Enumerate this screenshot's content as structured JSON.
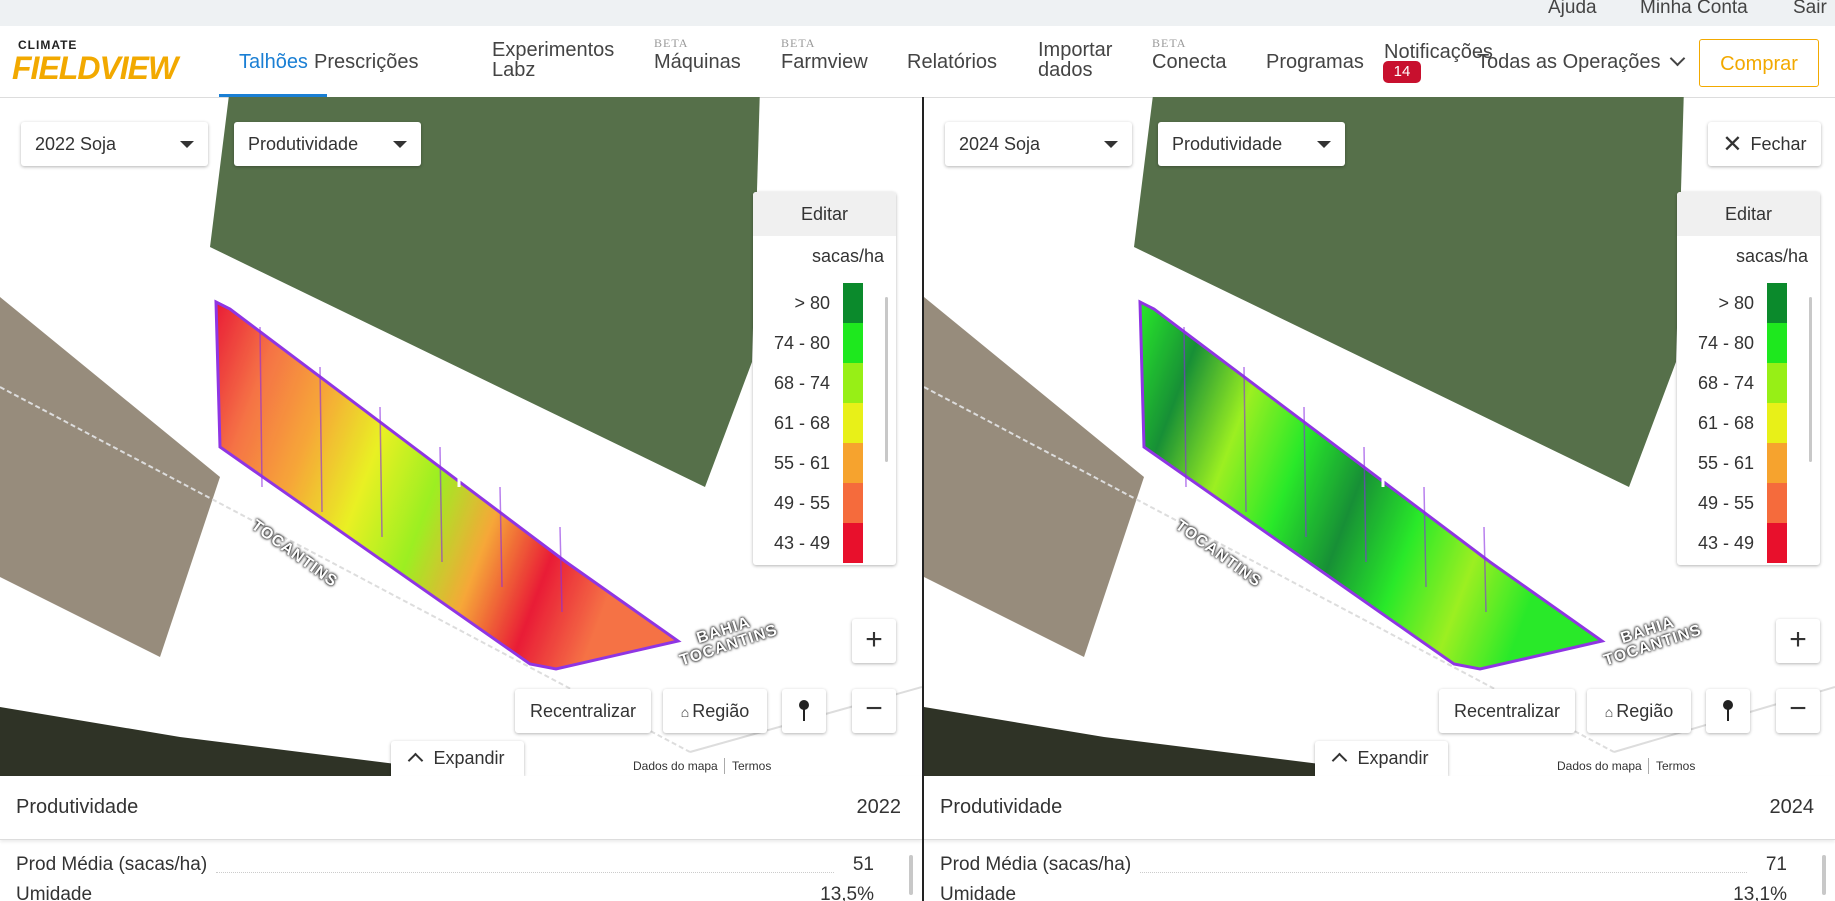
{
  "top_links": [
    "Ajuda",
    "Minha Conta",
    "Sair"
  ],
  "nav": {
    "logo": {
      "small": "CLIMATE",
      "big": "FIELDVIEW"
    },
    "items": [
      {
        "label": "Talhões"
      },
      {
        "label": "Prescrições"
      },
      {
        "label": "Experimentos Labz"
      },
      {
        "label": "Máquinas",
        "beta": "BETA"
      },
      {
        "label": "Farmview",
        "beta": "BETA"
      },
      {
        "label": "Relatórios"
      },
      {
        "label": "Importar dados"
      },
      {
        "label": "Conecta",
        "beta": "BETA"
      },
      {
        "label": "Programas"
      }
    ],
    "notifications": {
      "label": "Notificações",
      "count": "14"
    },
    "operations": "Todas as Operações",
    "buy": "Comprar"
  },
  "panels": [
    {
      "season": "2022 Soja",
      "layer": "Produtividade",
      "legend": {
        "edit": "Editar",
        "unit": "sacas/ha",
        "ranges": [
          {
            "label": "> 80",
            "color": "#0b8a2c"
          },
          {
            "label": "74 - 80",
            "color": "#1ee81e"
          },
          {
            "label": "68 - 74",
            "color": "#97ef16"
          },
          {
            "label": "61 - 68",
            "color": "#e8f018"
          },
          {
            "label": "55 - 61",
            "color": "#f6a32e"
          },
          {
            "label": "49 - 55",
            "color": "#f56b3c"
          },
          {
            "label": "43 - 49",
            "color": "#e8102c"
          }
        ]
      },
      "map_labels": [
        "TOCANTINS",
        "BAHIA",
        "TOCANTINS"
      ],
      "buttons": {
        "recenter": "Recentralizar",
        "region": "Região",
        "expand": "Expandir"
      },
      "attribution": [
        "Dados do mapa",
        "Termos"
      ],
      "summary": {
        "title": "Produtividade",
        "year": "2022",
        "rows": [
          {
            "label": "Prod Média (sacas/ha)",
            "value": "51"
          },
          {
            "label": "Umidade",
            "value": "13,5%"
          }
        ]
      }
    },
    {
      "season": "2024 Soja",
      "layer": "Produtividade",
      "close": "Fechar",
      "legend": {
        "edit": "Editar",
        "unit": "sacas/ha",
        "ranges": [
          {
            "label": "> 80",
            "color": "#0b8a2c"
          },
          {
            "label": "74 - 80",
            "color": "#1ee81e"
          },
          {
            "label": "68 - 74",
            "color": "#97ef16"
          },
          {
            "label": "61 - 68",
            "color": "#e8f018"
          },
          {
            "label": "55 - 61",
            "color": "#f6a32e"
          },
          {
            "label": "49 - 55",
            "color": "#f56b3c"
          },
          {
            "label": "43 - 49",
            "color": "#e8102c"
          }
        ]
      },
      "map_labels": [
        "TOCANTINS",
        "BAHIA",
        "TOCANTINS"
      ],
      "buttons": {
        "recenter": "Recentralizar",
        "region": "Região",
        "expand": "Expandir"
      },
      "attribution": [
        "Dados do mapa",
        "Termos"
      ],
      "summary": {
        "title": "Produtividade",
        "year": "2024",
        "rows": [
          {
            "label": "Prod Média (sacas/ha)",
            "value": "71"
          },
          {
            "label": "Umidade",
            "value": "13,1%"
          }
        ]
      }
    }
  ]
}
